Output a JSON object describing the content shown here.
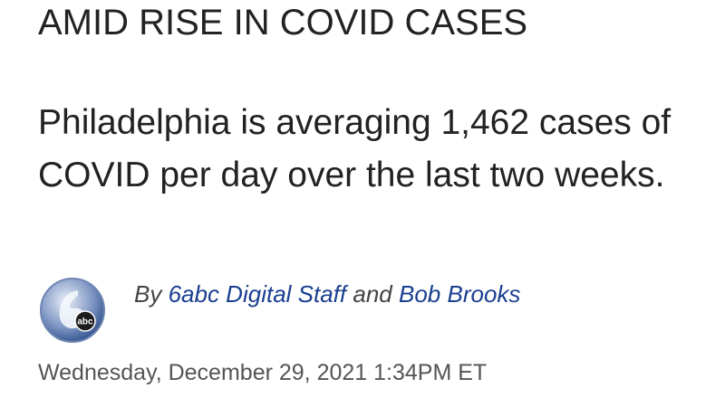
{
  "header": {
    "title": "AMID RISE IN COVID CASES",
    "subtitle": "Philadelphia is averaging 1,462 cases of COVID per day over the last two weeks."
  },
  "byline": {
    "logo_text": "abc",
    "prefix": "By",
    "authors": [
      "6abc Digital Staff",
      "Bob Brooks"
    ],
    "joiner": "and",
    "date": "Wednesday, December 29, 2021 1:34PM ET"
  }
}
